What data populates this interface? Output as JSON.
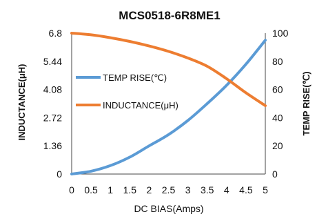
{
  "chart_data": {
    "type": "line",
    "title": "MCS0518-6R8ME1",
    "xlabel": "DC  BIAS(Amps)",
    "ylabel_left": "INDUCTANCE(μH)",
    "ylabel_right": "TEMP RISE(℃)",
    "x_ticks": [
      "0",
      "0.5",
      "1",
      "1.5",
      "2",
      "2.5",
      "3",
      "3.5",
      "4",
      "4.5",
      "5"
    ],
    "y_left_ticks": [
      "0",
      "1.36",
      "2.72",
      "4.08",
      "5.44",
      "6.8"
    ],
    "y_right_ticks": [
      "0",
      "20",
      "40",
      "60",
      "80",
      "100"
    ],
    "xlim": [
      0,
      5
    ],
    "ylim_left": [
      0,
      6.8
    ],
    "ylim_right": [
      0,
      100
    ],
    "grid": false,
    "legend_position": "top-left",
    "series": [
      {
        "name": "TEMP RISE(℃)",
        "axis": "right",
        "color": "#5b9bd5",
        "x": [
          0,
          0.5,
          1,
          1.5,
          2,
          2.5,
          3,
          3.5,
          4,
          4.5,
          5
        ],
        "y": [
          0,
          2,
          6,
          12,
          20,
          28,
          38,
          50,
          63,
          78,
          95
        ]
      },
      {
        "name": "INDUCTANCE(μH)",
        "axis": "left",
        "color": "#ed7d31",
        "x": [
          0,
          0.5,
          1,
          1.5,
          2,
          2.5,
          3,
          3.5,
          4,
          4.5,
          5
        ],
        "y": [
          6.8,
          6.72,
          6.58,
          6.4,
          6.18,
          5.92,
          5.6,
          5.2,
          4.6,
          3.92,
          3.3
        ]
      }
    ]
  }
}
